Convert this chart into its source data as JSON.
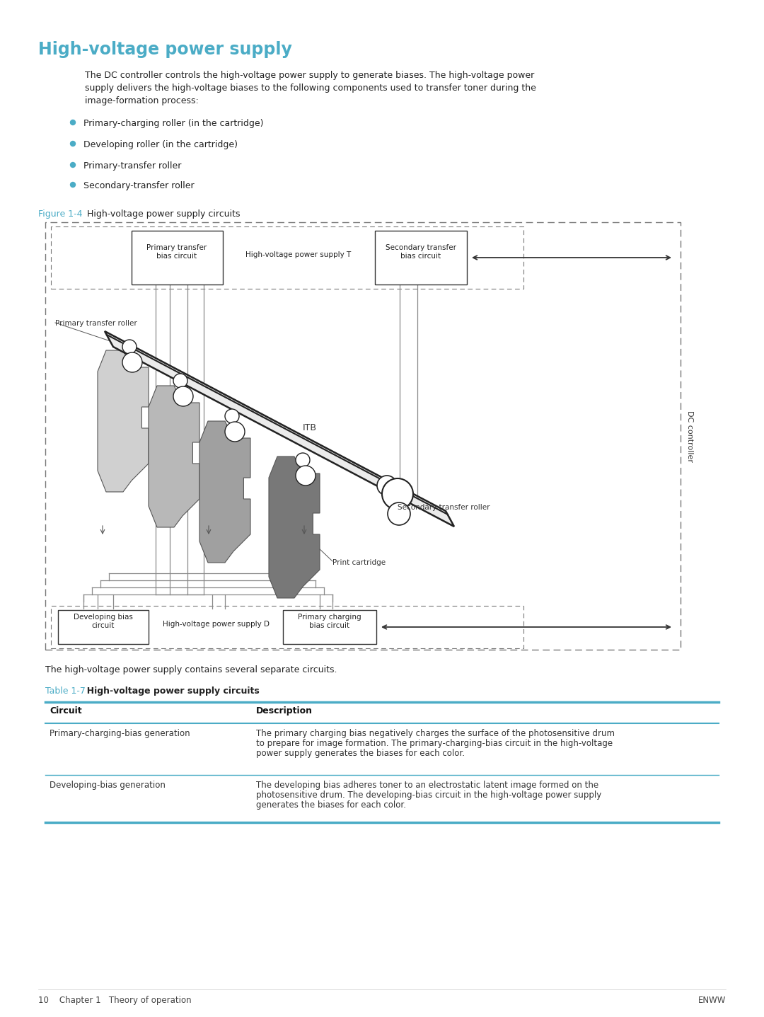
{
  "title": "High-voltage power supply",
  "title_color": "#4BACC6",
  "bg_color": "#FFFFFF",
  "body_text1": "The DC controller controls the high-voltage power supply to generate biases. The high-voltage power",
  "body_text2": "supply delivers the high-voltage biases to the following components used to transfer toner during the",
  "body_text3": "image-formation process:",
  "bullets": [
    "Primary-charging roller (in the cartridge)",
    "Developing roller (in the cartridge)",
    "Primary-transfer roller",
    "Secondary-transfer roller"
  ],
  "bullet_color": "#4BACC6",
  "figure_caption_blue": "Figure 1-4",
  "figure_caption_black": "  High-voltage power supply circuits",
  "figure_caption_color": "#4BACC6",
  "diag_primary_transfer_bias": "Primary transfer\nbias circuit",
  "diag_hvps_t": "High-voltage power supply T",
  "diag_secondary_transfer_bias": "Secondary transfer\nbias circuit",
  "diag_primary_transfer_roller": "Primary transfer roller",
  "diag_itb": "ITB",
  "diag_secondary_transfer_roller": "Secondary transfer roller",
  "diag_print_cartridge": "Print cartridge",
  "diag_dc_controller": "DC controller",
  "diag_developing_bias": "Developing bias\ncircuit",
  "diag_hvps_d": "High-voltage power supply D",
  "diag_primary_charging_bias": "Primary charging\nbias circuit",
  "summary_text": "The high-voltage power supply contains several separate circuits.",
  "table_caption_blue": "Table 1-7",
  "table_caption_black": "  High-voltage power supply circuits",
  "table_caption_color": "#4BACC6",
  "table_line_color": "#4BACC6",
  "table_header_circuit": "Circuit",
  "table_header_description": "Description",
  "row1_circuit": "Primary-charging-bias generation",
  "row1_desc1": "The primary charging bias negatively charges the surface of the photosensitive drum",
  "row1_desc2": "to prepare for image formation. The primary-charging-bias circuit in the high-voltage",
  "row1_desc3": "power supply generates the biases for each color.",
  "row2_circuit": "Developing-bias generation",
  "row2_desc1": "The developing bias adheres toner to an electrostatic latent image formed on the",
  "row2_desc2": "photosensitive drum. The developing-bias circuit in the high-voltage power supply",
  "row2_desc3": "generates the biases for each color.",
  "footer_left": "10    Chapter 1   Theory of operation",
  "footer_right": "ENWW"
}
